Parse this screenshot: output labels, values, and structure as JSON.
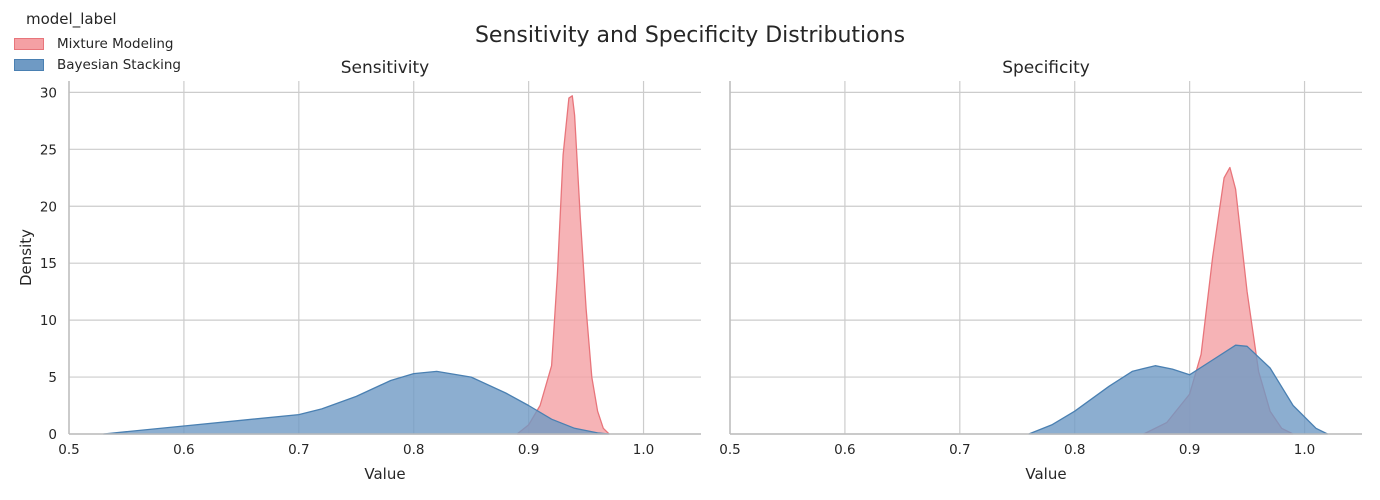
{
  "figure": {
    "title": "Sensitivity and Specificity Distributions"
  },
  "legend": {
    "title": "model_label",
    "entries": [
      {
        "name": "Mixture Modeling",
        "fill": "#f4a0a4",
        "edge": "#e8757b"
      },
      {
        "name": "Bayesian Stacking",
        "fill": "#6f9ac4",
        "edge": "#4a80b2"
      }
    ]
  },
  "chart_data": [
    {
      "type": "area",
      "title": "Sensitivity",
      "xlabel": "Value",
      "ylabel": "Density",
      "xlim": [
        0.5,
        1.05
      ],
      "ylim": [
        0,
        31
      ],
      "xticks": [
        0.5,
        0.6,
        0.7,
        0.8,
        0.9,
        1.0
      ],
      "yticks": [
        0,
        5,
        10,
        15,
        20,
        25,
        30
      ],
      "grid": true,
      "series": [
        {
          "name": "Mixture Modeling",
          "x": [
            0.89,
            0.9,
            0.91,
            0.92,
            0.925,
            0.93,
            0.935,
            0.938,
            0.94,
            0.945,
            0.95,
            0.955,
            0.96,
            0.965,
            0.97
          ],
          "y": [
            0,
            0.8,
            2.5,
            6.0,
            14.0,
            24.5,
            29.5,
            29.7,
            28.0,
            19.0,
            11.0,
            5.0,
            2.0,
            0.5,
            0
          ]
        },
        {
          "name": "Bayesian Stacking",
          "x": [
            0.53,
            0.55,
            0.6,
            0.65,
            0.7,
            0.72,
            0.75,
            0.78,
            0.8,
            0.82,
            0.85,
            0.88,
            0.9,
            0.92,
            0.94,
            0.96,
            0.97
          ],
          "y": [
            0,
            0.2,
            0.7,
            1.2,
            1.7,
            2.2,
            3.3,
            4.7,
            5.3,
            5.5,
            5.0,
            3.6,
            2.5,
            1.3,
            0.5,
            0.1,
            0
          ]
        }
      ]
    },
    {
      "type": "area",
      "title": "Specificity",
      "xlabel": "Value",
      "ylabel": "",
      "xlim": [
        0.5,
        1.05
      ],
      "ylim": [
        0,
        31
      ],
      "xticks": [
        0.5,
        0.6,
        0.7,
        0.8,
        0.9,
        1.0
      ],
      "yticks": [
        0,
        5,
        10,
        15,
        20,
        25,
        30
      ],
      "grid": true,
      "series": [
        {
          "name": "Mixture Modeling",
          "x": [
            0.86,
            0.88,
            0.9,
            0.91,
            0.92,
            0.93,
            0.935,
            0.94,
            0.95,
            0.96,
            0.97,
            0.98,
            0.99
          ],
          "y": [
            0,
            1.0,
            3.5,
            7.0,
            15.5,
            22.5,
            23.4,
            21.5,
            12.5,
            5.5,
            2.0,
            0.5,
            0
          ]
        },
        {
          "name": "Bayesian Stacking",
          "x": [
            0.76,
            0.78,
            0.8,
            0.83,
            0.85,
            0.87,
            0.885,
            0.9,
            0.92,
            0.94,
            0.95,
            0.97,
            0.99,
            1.01,
            1.02
          ],
          "y": [
            0,
            0.8,
            2.0,
            4.2,
            5.5,
            6.0,
            5.7,
            5.2,
            6.5,
            7.8,
            7.7,
            5.8,
            2.5,
            0.5,
            0
          ]
        }
      ]
    }
  ]
}
